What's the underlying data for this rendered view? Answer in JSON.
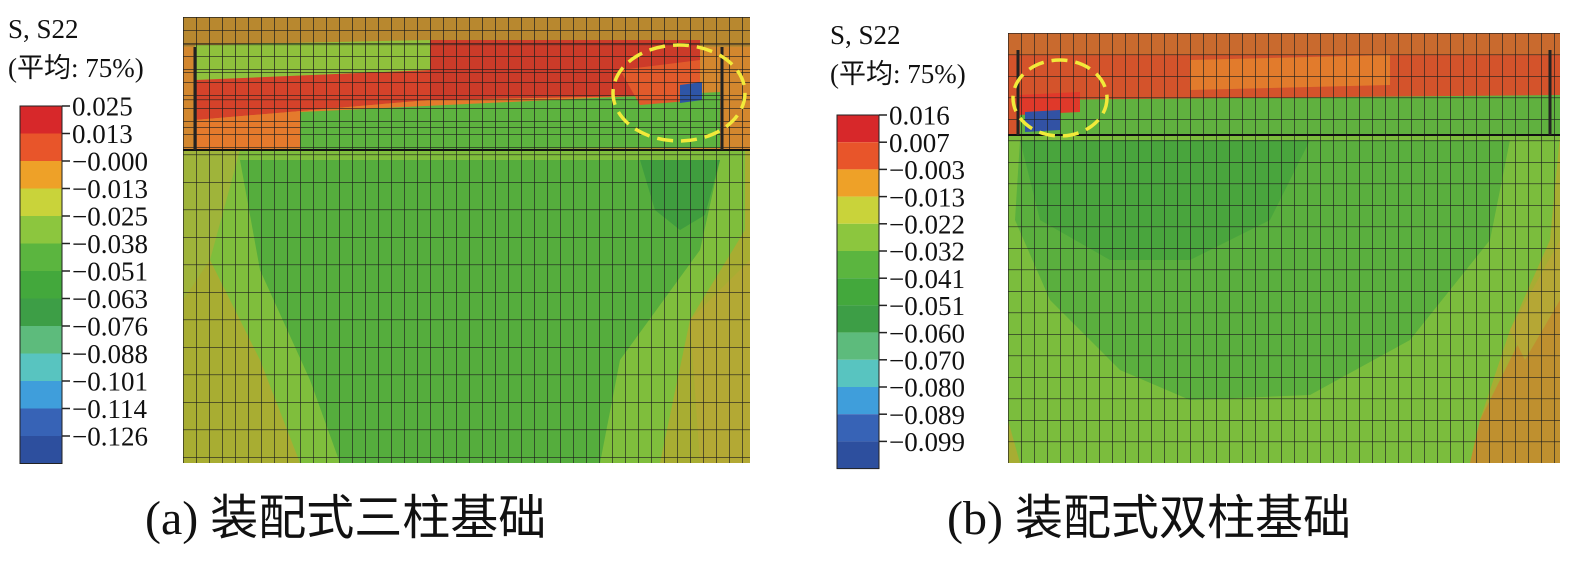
{
  "panels": [
    {
      "label": "S, S22",
      "averaging": "(平均: 75%)",
      "ticks": [
        "0.025",
        "0.013",
        "−0.000",
        "−0.013",
        "−0.025",
        "−0.038",
        "−0.051",
        "−0.063",
        "−0.076",
        "−0.088",
        "−0.101",
        "−0.114",
        "−0.126"
      ],
      "colors": [
        "#d7282a",
        "#e8552a",
        "#eea128",
        "#c9d33a",
        "#8cc63e",
        "#5bb53f",
        "#43a83c",
        "#3d9e46",
        "#5dbb7c",
        "#58c4c0",
        "#3f9edb",
        "#3763b6",
        "#2d4f9e"
      ],
      "caption": "(a) 装配式三柱基础"
    },
    {
      "label": "S, S22",
      "averaging": "(平均: 75%)",
      "ticks": [
        "0.016",
        "0.007",
        "−0.003",
        "−0.013",
        "−0.022",
        "−0.032",
        "−0.041",
        "−0.051",
        "−0.060",
        "−0.070",
        "−0.080",
        "−0.089",
        "−0.099"
      ],
      "colors": [
        "#d7282a",
        "#e8552a",
        "#eea128",
        "#c9d33a",
        "#8cc63e",
        "#5bb53f",
        "#43a83c",
        "#3d9e46",
        "#5dbb7c",
        "#58c4c0",
        "#3f9edb",
        "#3763b6",
        "#2d4f9e"
      ],
      "caption": "(b) 装配式双柱基础"
    }
  ]
}
